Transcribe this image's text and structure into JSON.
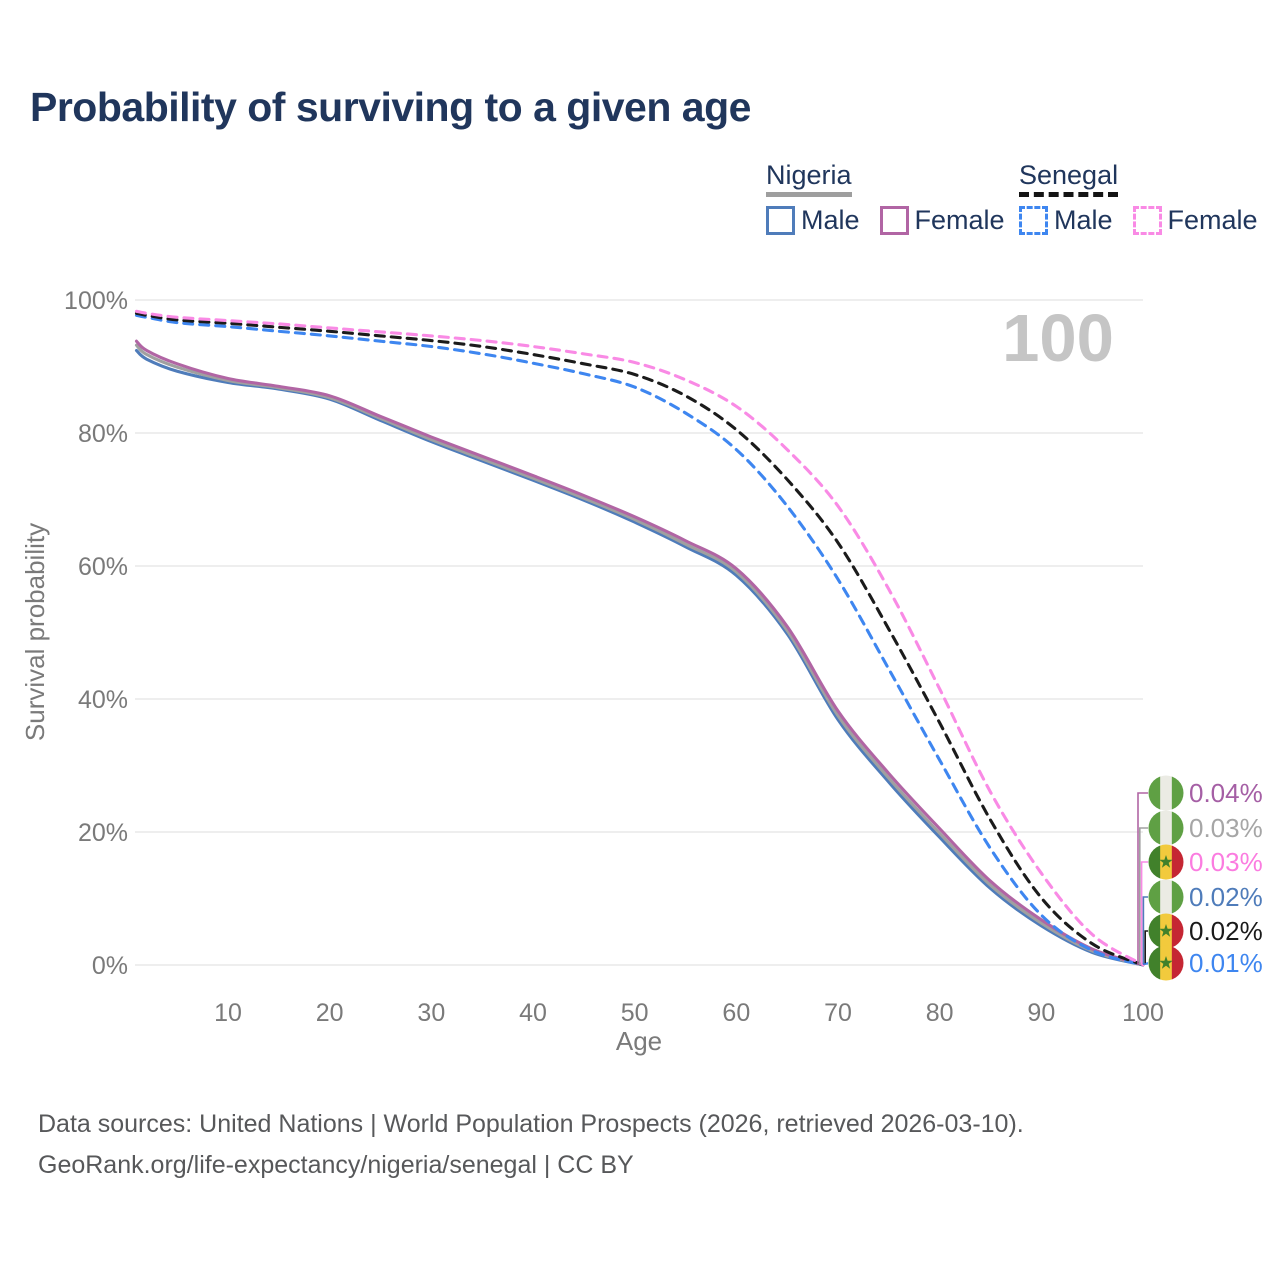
{
  "title": "Probability of surviving to a given age",
  "watermark": "100",
  "legend": {
    "groups": [
      {
        "country": "Nigeria",
        "line_style": "solid",
        "underline_color": "#9e9e9e",
        "items": [
          {
            "label": "Male",
            "color": "#4f7cba"
          },
          {
            "label": "Female",
            "color": "#b165a4"
          }
        ]
      },
      {
        "country": "Senegal",
        "line_style": "dashed",
        "underline_color": "#141414",
        "items": [
          {
            "label": "Male",
            "color": "#3e86f0"
          },
          {
            "label": "Female",
            "color": "#f98ae5"
          }
        ]
      }
    ]
  },
  "chart_data": {
    "type": "line",
    "title": "Probability of surviving to a given age",
    "xlabel": "Age",
    "ylabel": "Survival probability",
    "xlim": [
      1,
      100
    ],
    "ylim": [
      0,
      100
    ],
    "grid": "horizontal",
    "x_ticks": [
      10,
      20,
      30,
      40,
      50,
      60,
      70,
      80,
      90,
      100
    ],
    "y_ticks": [
      "0%",
      "20%",
      "40%",
      "60%",
      "80%",
      "100%"
    ],
    "ages": [
      1,
      2,
      5,
      10,
      15,
      20,
      25,
      30,
      35,
      40,
      45,
      50,
      55,
      60,
      65,
      70,
      75,
      80,
      85,
      90,
      95,
      100
    ],
    "series": [
      {
        "name": "Nigeria Male",
        "country": "Nigeria",
        "sex": "Male",
        "color": "#4f7cba",
        "dash": false,
        "values": [
          92.4,
          91.1,
          89.3,
          87.6,
          86.6,
          85.1,
          81.9,
          78.7,
          75.8,
          72.9,
          69.9,
          66.6,
          62.9,
          58.6,
          49.8,
          36.9,
          27.5,
          19.2,
          11.5,
          5.9,
          1.9,
          0.02
        ],
        "end_label": {
          "rank": 3,
          "text": "0.02%",
          "color": "#4f7cba",
          "flag": "nigeria"
        }
      },
      {
        "name": "Nigeria",
        "country": "Nigeria",
        "sex": "Both",
        "color": "#a0a0a0",
        "dash": false,
        "values": [
          93.2,
          91.8,
          89.9,
          87.9,
          86.8,
          85.3,
          82.2,
          79.0,
          76.1,
          73.2,
          70.2,
          67.0,
          63.3,
          59.1,
          50.3,
          37.5,
          28.1,
          19.8,
          12.0,
          6.3,
          2.1,
          0.03
        ],
        "end_label": {
          "rank": 1,
          "text": "0.03%",
          "color": "#a6a6a6",
          "flag": "nigeria"
        }
      },
      {
        "name": "Nigeria Female",
        "country": "Nigeria",
        "sex": "Female",
        "color": "#b165a4",
        "dash": false,
        "values": [
          93.8,
          92.4,
          90.4,
          88.2,
          87.0,
          85.6,
          82.5,
          79.4,
          76.5,
          73.6,
          70.6,
          67.4,
          63.8,
          59.6,
          50.9,
          38.2,
          28.8,
          20.5,
          12.6,
          6.8,
          2.4,
          0.04
        ],
        "end_label": {
          "rank": 0,
          "text": "0.04%",
          "color": "#a55fa5",
          "flag": "nigeria"
        }
      },
      {
        "name": "Senegal Male",
        "country": "Senegal",
        "sex": "Male",
        "color": "#3e86f0",
        "dash": true,
        "values": [
          97.7,
          97.4,
          96.6,
          96.0,
          95.3,
          94.6,
          93.8,
          93.0,
          91.9,
          90.5,
          88.9,
          86.9,
          83.0,
          77.5,
          69.0,
          58.0,
          44.5,
          30.8,
          17.5,
          7.5,
          2.2,
          0.01
        ],
        "end_label": {
          "rank": 5,
          "text": "0.01%",
          "color": "#3e86f0",
          "flag": "senegal"
        }
      },
      {
        "name": "Senegal",
        "country": "Senegal",
        "sex": "Both",
        "color": "#1b1b1b",
        "dash": true,
        "values": [
          98.0,
          97.7,
          97.0,
          96.5,
          95.9,
          95.3,
          94.6,
          93.9,
          93.0,
          91.8,
          90.4,
          88.8,
          85.6,
          80.5,
          73.0,
          63.5,
          50.5,
          36.4,
          21.8,
          10.1,
          3.2,
          0.02
        ],
        "end_label": {
          "rank": 4,
          "text": "0.02%",
          "color": "#1a1a1a",
          "flag": "senegal"
        }
      },
      {
        "name": "Senegal Female",
        "country": "Senegal",
        "sex": "Female",
        "color": "#f98ae5",
        "dash": true,
        "values": [
          98.3,
          98.0,
          97.4,
          96.9,
          96.4,
          95.8,
          95.2,
          94.6,
          93.9,
          93.0,
          91.9,
          90.6,
          88.0,
          84.0,
          77.5,
          69.0,
          56.5,
          41.5,
          26.0,
          13.8,
          4.6,
          0.03
        ],
        "end_label": {
          "rank": 2,
          "text": "0.03%",
          "color": "#fb7ce0",
          "flag": "senegal"
        }
      }
    ],
    "flag_colors": {
      "nigeria": [
        "#5fa044",
        "#ebebe4",
        "#5fa044"
      ],
      "senegal": [
        "#41812b",
        "#f2ca3d",
        "#c52633"
      ],
      "senegal_star": "#41812b"
    },
    "grid_color": "#e8e8e8",
    "tick_color": "#7a7a7a",
    "watermark_color": "#c5c5c5"
  },
  "footer": {
    "line1": "Data sources: United Nations | World Population Prospects (2026, retrieved 2026-03-10).",
    "line2": "GeoRank.org/life-expectancy/nigeria/senegal | CC BY"
  }
}
